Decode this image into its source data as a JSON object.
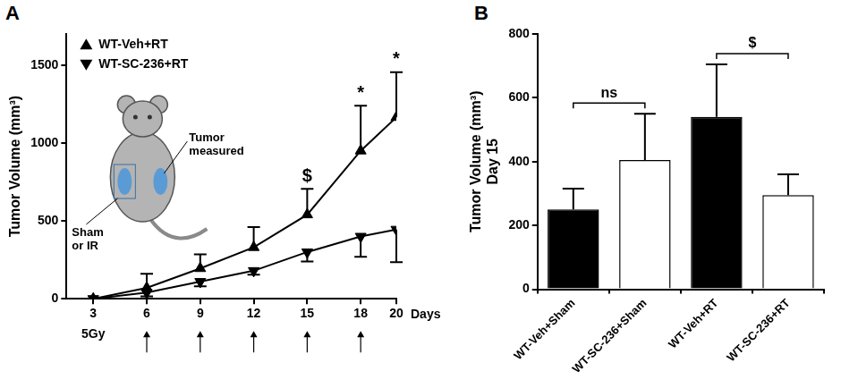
{
  "chart_data": [
    {
      "panel": "A",
      "type": "line",
      "x": [
        3,
        6,
        9,
        12,
        15,
        18,
        20
      ],
      "xlim": [
        1.5,
        20
      ],
      "xticks": [
        3,
        6,
        9,
        12,
        15,
        18,
        20
      ],
      "x_label": "Days",
      "ylim": [
        0,
        1700
      ],
      "yticks": [
        0,
        500,
        1000,
        1500
      ],
      "y_label": "Tumor Volume (mm³)",
      "grid": false,
      "legend": "upper left",
      "series": [
        {
          "name": "WT-Veh+RT",
          "color": "#000000",
          "marker": "triangle-up",
          "values": [
            0,
            70,
            195,
            330,
            540,
            950,
            1165
          ],
          "errors": [
            0,
            90,
            90,
            130,
            165,
            290,
            290
          ]
        },
        {
          "name": "WT-SC-236+RT",
          "color": "#000000",
          "marker": "triangle-down",
          "values": [
            0,
            40,
            110,
            180,
            300,
            400,
            445
          ],
          "errors": [
            0,
            25,
            30,
            25,
            60,
            130,
            210
          ]
        }
      ],
      "annotations": [
        {
          "x": 15,
          "text": "$"
        },
        {
          "x": 18,
          "text": "*"
        },
        {
          "x": 20,
          "text": "*"
        }
      ],
      "dose_label": "5Gy",
      "dose_days": [
        6,
        9,
        12,
        15,
        18
      ],
      "diagram_labels": [
        "Tumor measured",
        "Sham or IR"
      ]
    },
    {
      "panel": "B",
      "type": "bar",
      "categories": [
        "WT-Veh+Sham",
        "WT-SC-236+Sham",
        "WT-Veh+RT",
        "WT-SC-236+RT"
      ],
      "values": [
        250,
        405,
        540,
        295
      ],
      "errors": [
        65,
        145,
        165,
        65
      ],
      "colors": [
        "#000000",
        "#ffffff",
        "#000000",
        "#ffffff"
      ],
      "ylim": [
        0,
        800
      ],
      "yticks": [
        0,
        200,
        400,
        600,
        800
      ],
      "y_label": [
        "Tumor Volume (mm³)",
        "Day 15"
      ],
      "grid": false,
      "comparisons": [
        {
          "from": 0,
          "to": 1,
          "text": "ns"
        },
        {
          "from": 2,
          "to": 3,
          "text": "$"
        }
      ]
    }
  ]
}
